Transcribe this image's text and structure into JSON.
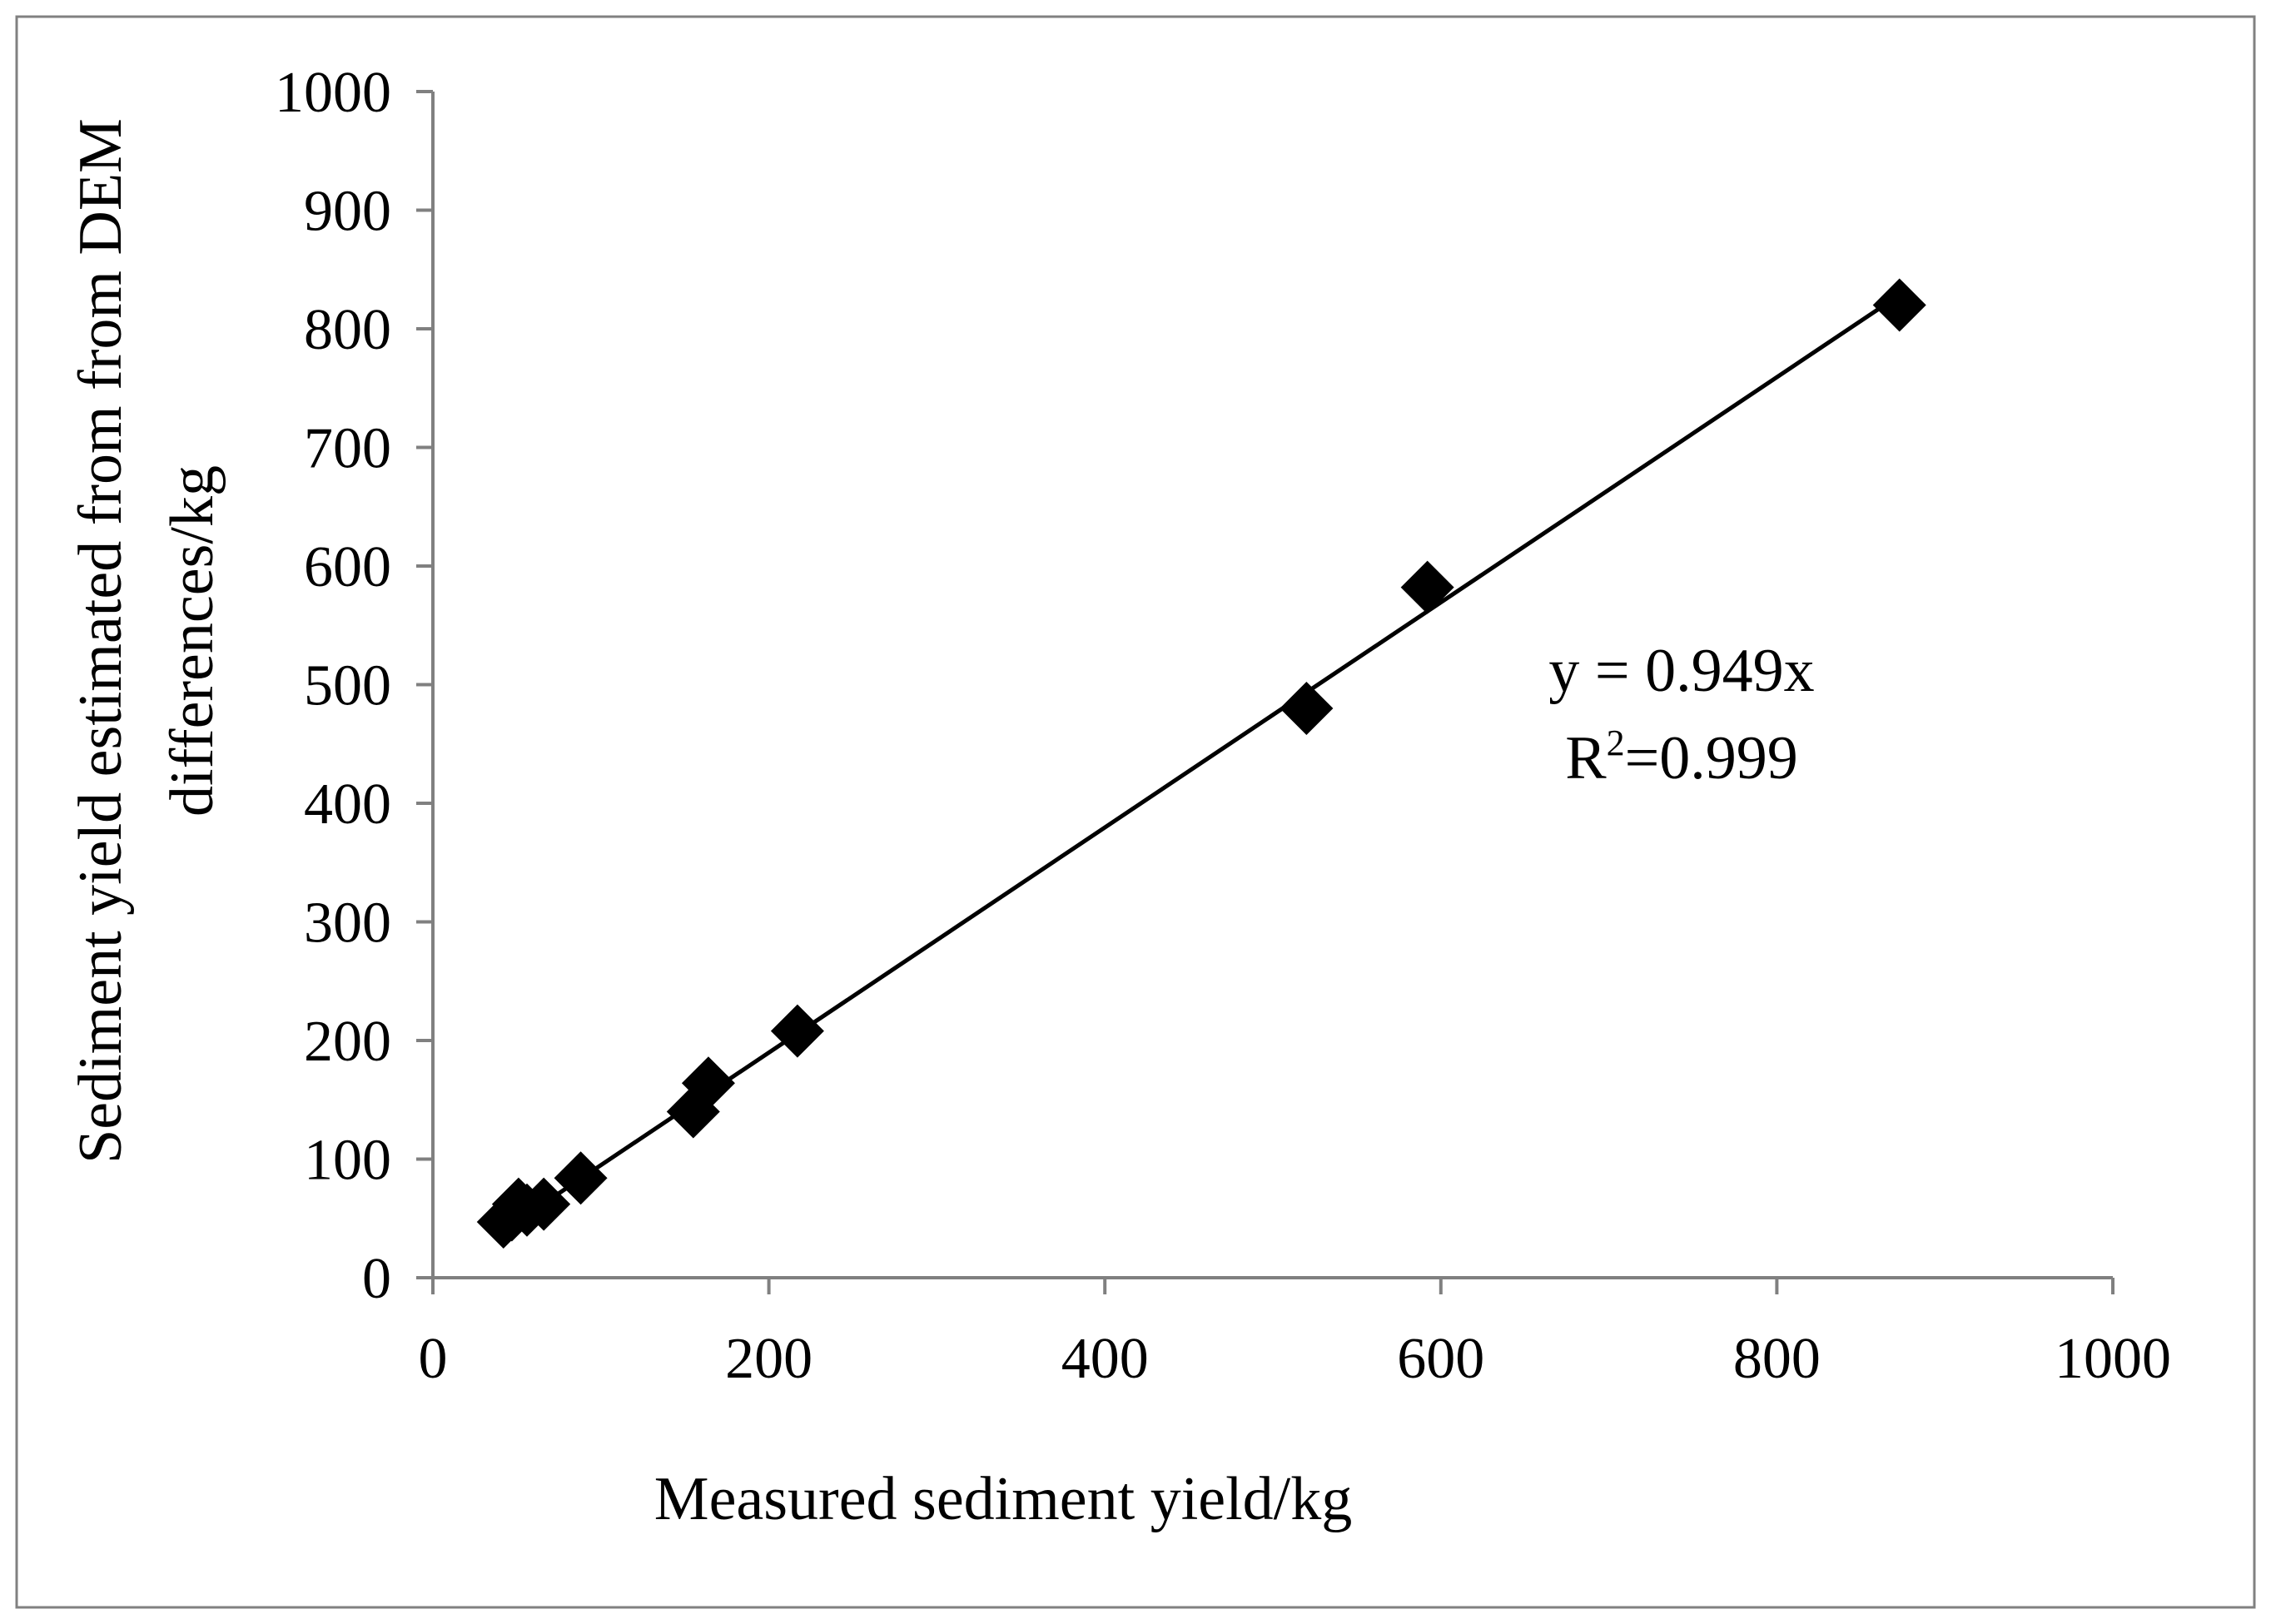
{
  "chart_data": {
    "type": "scatter",
    "title": "",
    "xlabel": "Measured sediment yield/kg",
    "ylabel_lines": [
      "Sediment yield estimated from from DEM",
      "differences/kg"
    ],
    "xlim": [
      0,
      1000
    ],
    "ylim": [
      0,
      1000
    ],
    "x_ticks": [
      0,
      200,
      400,
      600,
      800,
      1000
    ],
    "y_ticks": [
      0,
      100,
      200,
      300,
      400,
      500,
      600,
      700,
      800,
      900,
      1000
    ],
    "grid": false,
    "legend": "none",
    "marker": "diamond",
    "points": [
      {
        "x": 42,
        "y": 47
      },
      {
        "x": 47,
        "y": 53
      },
      {
        "x": 51,
        "y": 62
      },
      {
        "x": 56,
        "y": 57
      },
      {
        "x": 66,
        "y": 62
      },
      {
        "x": 88,
        "y": 84
      },
      {
        "x": 155,
        "y": 140
      },
      {
        "x": 164,
        "y": 164
      },
      {
        "x": 217,
        "y": 208
      },
      {
        "x": 520,
        "y": 480
      },
      {
        "x": 592,
        "y": 582
      },
      {
        "x": 873,
        "y": 820
      }
    ],
    "trendline": {
      "slope": 0.949,
      "x_range": [
        42,
        873
      ]
    },
    "annotation": {
      "equation": "y = 0.949x",
      "r2_prefix": "R",
      "r2_superscript": "2",
      "r2_suffix": "=0.999"
    },
    "colors": {
      "marker": "#000000",
      "line": "#000000",
      "axis": "#808080",
      "frame": "#808080"
    }
  }
}
